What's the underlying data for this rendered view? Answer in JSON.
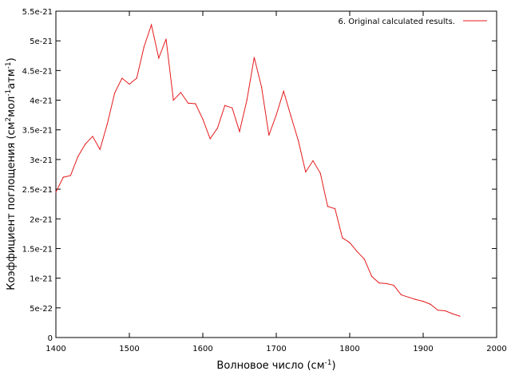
{
  "chart_data": {
    "type": "line",
    "xlabel": "Волновое число (см",
    "xlabel_sup": "-1",
    "xlabel_end": ")",
    "ylabel_parts": [
      "Коэффициент поглощения (см",
      "2",
      "мол",
      "-1",
      "атм",
      "-1",
      ")"
    ],
    "xlim": [
      1400,
      2000
    ],
    "ylim": [
      0,
      5.5e-21
    ],
    "xticks": [
      1400,
      1500,
      1600,
      1700,
      1800,
      1900,
      2000
    ],
    "xtick_labels": [
      "1400",
      "1500",
      "1600",
      "1700",
      "1800",
      "1900",
      "2000"
    ],
    "yticks": [
      0,
      5e-22,
      1e-21,
      1.5e-21,
      2e-21,
      2.5e-21,
      3e-21,
      3.5e-21,
      4e-21,
      4.5e-21,
      5e-21,
      5.5e-21
    ],
    "ytick_labels": [
      "0",
      "5e-22",
      "1e-21",
      "1.5e-21",
      "2e-21",
      "2.5e-21",
      "3e-21",
      "3.5e-21",
      "4e-21",
      "4.5e-21",
      "5e-21",
      "5.5e-21"
    ],
    "grid": false,
    "legend_position": "top-right",
    "series": [
      {
        "name": "6. Original calculated results.",
        "color": "#e41a1c",
        "x": [
          1400,
          1410,
          1420,
          1430,
          1440,
          1450,
          1460,
          1470,
          1480,
          1490,
          1500,
          1510,
          1520,
          1530,
          1540,
          1550,
          1560,
          1570,
          1580,
          1590,
          1600,
          1610,
          1620,
          1630,
          1640,
          1650,
          1660,
          1670,
          1680,
          1690,
          1700,
          1710,
          1720,
          1730,
          1740,
          1750,
          1760,
          1770,
          1780,
          1790,
          1800,
          1810,
          1820,
          1830,
          1840,
          1850,
          1860,
          1870,
          1880,
          1890,
          1900,
          1910,
          1920,
          1930,
          1940,
          1950
        ],
        "y": [
          2.45e-21,
          2.7e-21,
          2.73e-21,
          3.05e-21,
          3.26e-21,
          3.39e-21,
          3.17e-21,
          3.6e-21,
          4.12e-21,
          4.37e-21,
          4.27e-21,
          4.37e-21,
          4.9e-21,
          5.27e-21,
          4.71e-21,
          5.03e-21,
          4e-21,
          4.13e-21,
          3.95e-21,
          3.94e-21,
          3.68e-21,
          3.35e-21,
          3.53e-21,
          3.91e-21,
          3.87e-21,
          3.47e-21,
          4e-21,
          4.72e-21,
          4.22e-21,
          3.41e-21,
          3.75e-21,
          4.15e-21,
          3.73e-21,
          3.32e-21,
          2.79e-21,
          2.98e-21,
          2.77e-21,
          2.21e-21,
          2.17e-21,
          1.68e-21,
          1.6e-21,
          1.45e-21,
          1.32e-21,
          1.03e-21,
          9.2e-22,
          9.1e-22,
          8.8e-22,
          7.2e-22,
          6.8e-22,
          6.4e-22,
          6.1e-22,
          5.6e-22,
          4.6e-22,
          4.5e-22,
          4e-22,
          3.6e-22
        ]
      }
    ]
  }
}
